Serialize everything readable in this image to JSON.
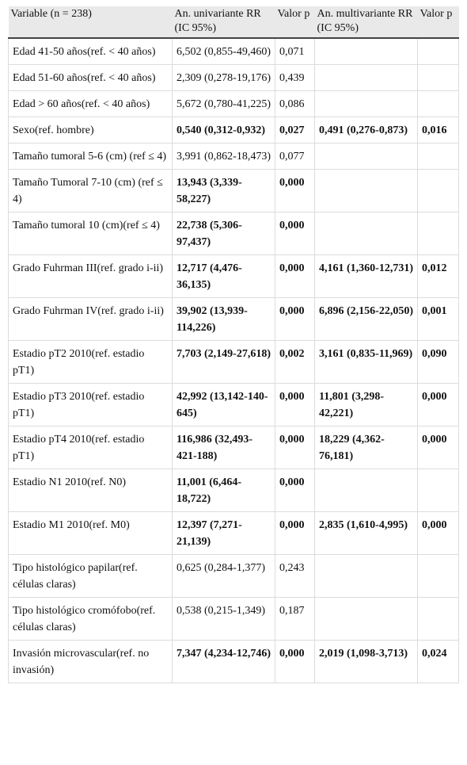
{
  "table": {
    "header": [
      "Variable (n = 238)",
      "An. univariante RR (IC 95%)",
      "Valor p",
      "An. multivariante RR (IC 95%)",
      "Valor p"
    ],
    "rows": [
      {
        "cells": [
          "Edad 41-50 años(ref. < 40 años)",
          "6,502 (0,855-49,460)",
          "0,071",
          null,
          null
        ],
        "bold": false
      },
      {
        "cells": [
          "Edad 51-60 años(ref. < 40 años)",
          "2,309 (0,278-19,176)",
          "0,439",
          null,
          null
        ],
        "bold": false
      },
      {
        "cells": [
          "Edad > 60 años(ref. < 40 años)",
          "5,672 (0,780-41,225)",
          "0,086",
          null,
          null
        ],
        "bold": false
      },
      {
        "cells": [
          "Sexo(ref. hombre)",
          "0,540 (0,312-0,932)",
          "0,027",
          "0,491 (0,276-0,873)",
          "0,016"
        ],
        "bold": true
      },
      {
        "cells": [
          "Tamaño tumoral 5-6 (cm) (ref ≤ 4)",
          "3,991 (0,862-18,473)",
          "0,077",
          null,
          null
        ],
        "bold": false
      },
      {
        "cells": [
          "Tamaño Tumoral 7-10 (cm) (ref ≤ 4)",
          "13,943 (3,339-58,227)",
          "0,000",
          null,
          null
        ],
        "bold": true
      },
      {
        "cells": [
          "Tamaño tumoral 10 (cm)(ref ≤ 4)",
          "22,738 (5,306-97,437)",
          "0,000",
          null,
          null
        ],
        "bold": true
      },
      {
        "cells": [
          "Grado Fuhrman III(ref. grado i-ii)",
          "12,717 (4,476-36,135)",
          "0,000",
          "4,161 (1,360-12,731)",
          "0,012"
        ],
        "bold": true
      },
      {
        "cells": [
          "Grado Fuhrman IV(ref. grado i-ii)",
          "39,902 (13,939-114,226)",
          "0,000",
          "6,896 (2,156-22,050)",
          "0,001"
        ],
        "bold": true
      },
      {
        "cells": [
          "Estadio pT2 2010(ref. estadio pT1)",
          "7,703 (2,149-27,618)",
          "0,002",
          "3,161 (0,835-11,969)",
          "0,090"
        ],
        "bold": true
      },
      {
        "cells": [
          "Estadio pT3 2010(ref. estadio pT1)",
          "42,992 (13,142-140-645)",
          "0,000",
          "11,801 (3,298-42,221)",
          "0,000"
        ],
        "bold": true
      },
      {
        "cells": [
          "Estadio pT4 2010(ref. estadio pT1)",
          "116,986 (32,493-421-188)",
          "0,000",
          "18,229 (4,362-76,181)",
          "0,000"
        ],
        "bold": true
      },
      {
        "cells": [
          "Estadio N1 2010(ref. N0)",
          "11,001 (6,464-18,722)",
          "0,000",
          null,
          null
        ],
        "bold": true
      },
      {
        "cells": [
          "Estadio M1 2010(ref. M0)",
          "12,397 (7,271-21,139)",
          "0,000",
          "2,835 (1,610-4,995)",
          "0,000"
        ],
        "bold": true
      },
      {
        "cells": [
          "Tipo histológico papilar(ref. células claras)",
          "0,625 (0,284-1,377)",
          "0,243",
          null,
          null
        ],
        "bold": false
      },
      {
        "cells": [
          "Tipo histológico cromófobo(ref. células claras)",
          "0,538 (0,215-1,349)",
          "0,187",
          null,
          null
        ],
        "bold": false
      },
      {
        "cells": [
          "Invasión microvascular(ref. no invasión)",
          "7,347 (4,234-12,746)",
          "0,000",
          "2,019 (1,098-3,713)",
          "0,024"
        ],
        "bold": true
      }
    ]
  }
}
